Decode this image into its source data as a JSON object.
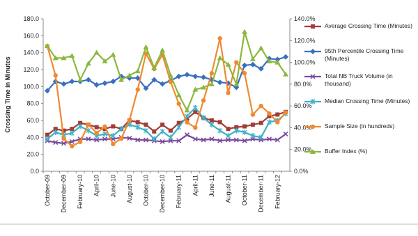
{
  "chart_data": {
    "type": "line",
    "y_label": "Crossing Time in Minutes",
    "categories": [
      "October-09",
      null,
      "December-09",
      null,
      "February-10",
      null,
      "April-10",
      null,
      "June-10",
      null,
      "August-10",
      null,
      "October-10",
      null,
      "December-10",
      null,
      "February-11",
      null,
      "April-11",
      null,
      "June-11",
      null,
      "August-11",
      null,
      "October-11",
      null,
      "December-11",
      null,
      "February-12",
      null
    ],
    "ylim": [
      0,
      180
    ],
    "yticks": [
      {
        "value": 0,
        "label": "0.0"
      },
      {
        "value": 20,
        "label": "20.0"
      },
      {
        "value": 40,
        "label": "40.0"
      },
      {
        "value": 60,
        "label": "60.0"
      },
      {
        "value": 80,
        "label": "80.0"
      },
      {
        "value": 100,
        "label": "100.0"
      },
      {
        "value": 120,
        "label": "120.0"
      },
      {
        "value": 140,
        "label": "140.0"
      },
      {
        "value": 160,
        "label": "160.0"
      },
      {
        "value": 180,
        "label": "180.0"
      }
    ],
    "y2lim": [
      0,
      140
    ],
    "y2ticks": [
      {
        "value": 0,
        "label": "0.0%"
      },
      {
        "value": 20,
        "label": "20.0%"
      },
      {
        "value": 40,
        "label": "40.0%"
      },
      {
        "value": 60,
        "label": "60.0%"
      },
      {
        "value": 80,
        "label": "80.0%"
      },
      {
        "value": 100,
        "label": "100.0%"
      },
      {
        "value": 120,
        "label": "120.0%"
      },
      {
        "value": 140,
        "label": "140.0%"
      }
    ],
    "legend": "right",
    "series": [
      {
        "name": "Average Crossing Time (Minutes)",
        "color": "#a33b36",
        "marker": "square",
        "values": [
          43,
          50,
          48,
          50,
          57,
          55,
          52,
          50,
          53,
          50,
          60,
          58,
          55,
          47,
          55,
          48,
          57,
          62,
          70,
          63,
          60,
          58,
          50,
          52,
          53,
          55,
          57,
          65,
          67,
          70
        ]
      },
      {
        "name": "95th Percentile Crossing Time (Minutes)",
        "color": "#3a6fc0",
        "marker": "diamond",
        "values": [
          95,
          106,
          103,
          106,
          106,
          108,
          102,
          104,
          106,
          112,
          110,
          110,
          98,
          108,
          103,
          107,
          112,
          114,
          112,
          111,
          108,
          105,
          104,
          99,
          125,
          126,
          121,
          133,
          132,
          135
        ]
      },
      {
        "name": "Total NB Truck Volume (in thousand)",
        "color": "#7a4a9e",
        "marker": "cross",
        "values": [
          36,
          34,
          33,
          35,
          38,
          38,
          37,
          38,
          38,
          40,
          39,
          37,
          37,
          36,
          35,
          36,
          36,
          43,
          38,
          37,
          38,
          36,
          37,
          37,
          36,
          38,
          37,
          38,
          37,
          44
        ]
      },
      {
        "name": "Median Crossing Time (Minutes)",
        "color": "#3fb1c6",
        "marker": "star",
        "values": [
          38,
          46,
          43,
          45,
          53,
          48,
          42,
          44,
          42,
          50,
          55,
          52,
          48,
          38,
          47,
          40,
          52,
          65,
          75,
          63,
          55,
          48,
          42,
          48,
          46,
          42,
          40,
          58,
          60,
          68
        ]
      },
      {
        "name": "Sample Size (in hundreds)",
        "color": "#f08a30",
        "marker": "circle",
        "axis": "y2",
        "values": [
          115,
          88,
          30,
          23,
          27,
          43,
          35,
          41,
          25,
          30,
          47,
          75,
          108,
          94,
          107,
          82,
          62,
          45,
          40,
          65,
          90,
          122,
          72,
          100,
          90,
          52,
          60,
          53,
          45,
          54
        ]
      },
      {
        "name": "Buffer Index (%)",
        "color": "#8ab83f",
        "marker": "triangle",
        "axis": "y2",
        "values": [
          115,
          104,
          104,
          106,
          84,
          99,
          109,
          101,
          107,
          84,
          88,
          92,
          114,
          95,
          111,
          88,
          70,
          56,
          75,
          77,
          80,
          104,
          98,
          80,
          128,
          103,
          113,
          101,
          100,
          89
        ]
      }
    ]
  }
}
